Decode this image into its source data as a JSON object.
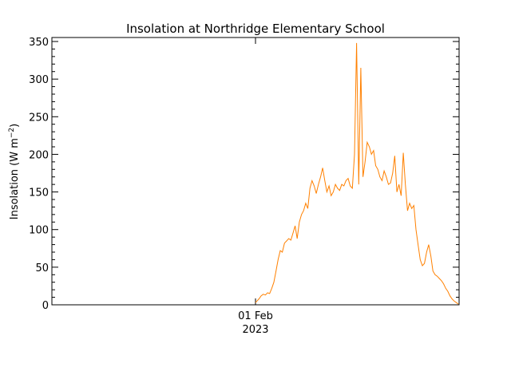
{
  "chart_data": {
    "type": "line",
    "title": "Insolation at Northridge Elementary School",
    "ylabel_main": "Insolation (W m",
    "ylabel_sup": "−2",
    "ylabel_end": ")",
    "ylim": [
      0,
      350
    ],
    "yticks": [
      0,
      50,
      100,
      150,
      200,
      250,
      300,
      350
    ],
    "xlim": [
      "2023-01-31 00:00",
      "2023-02-01 24:00"
    ],
    "xticks": [
      {
        "x": "2023-02-01 00:00",
        "label": "01 Feb",
        "sublabel": "2023"
      }
    ],
    "grid": false,
    "series": [
      {
        "color": "#ff8000",
        "x": [
          "2023-02-01 00:00",
          "2023-02-01 00:10",
          "2023-02-01 00:25",
          "2023-02-01 00:40",
          "2023-02-01 00:55",
          "2023-02-01 01:10",
          "2023-02-01 01:25",
          "2023-02-01 01:40",
          "2023-02-01 01:55",
          "2023-02-01 02:10",
          "2023-02-01 02:25",
          "2023-02-01 02:40",
          "2023-02-01 02:55",
          "2023-02-01 03:10",
          "2023-02-01 03:25",
          "2023-02-01 03:40",
          "2023-02-01 03:55",
          "2023-02-01 04:10",
          "2023-02-01 04:25",
          "2023-02-01 04:40",
          "2023-02-01 04:55",
          "2023-02-01 05:10",
          "2023-02-01 05:25",
          "2023-02-01 05:40",
          "2023-02-01 05:55",
          "2023-02-01 06:10",
          "2023-02-01 06:25",
          "2023-02-01 06:40",
          "2023-02-01 06:55",
          "2023-02-01 07:10",
          "2023-02-01 07:25",
          "2023-02-01 07:40",
          "2023-02-01 07:55",
          "2023-02-01 08:10",
          "2023-02-01 08:25",
          "2023-02-01 08:40",
          "2023-02-01 08:55",
          "2023-02-01 09:10",
          "2023-02-01 09:25",
          "2023-02-01 09:40",
          "2023-02-01 09:55",
          "2023-02-01 10:10",
          "2023-02-01 10:25",
          "2023-02-01 10:40",
          "2023-02-01 10:55",
          "2023-02-01 11:10",
          "2023-02-01 11:25",
          "2023-02-01 11:40",
          "2023-02-01 11:55",
          "2023-02-01 12:10",
          "2023-02-01 12:25",
          "2023-02-01 12:40",
          "2023-02-01 12:55",
          "2023-02-01 13:10",
          "2023-02-01 13:25",
          "2023-02-01 13:40",
          "2023-02-01 13:55",
          "2023-02-01 14:10",
          "2023-02-01 14:25",
          "2023-02-01 14:40",
          "2023-02-01 14:55",
          "2023-02-01 15:10",
          "2023-02-01 15:25",
          "2023-02-01 15:40",
          "2023-02-01 15:55",
          "2023-02-01 16:10",
          "2023-02-01 16:25",
          "2023-02-01 16:40",
          "2023-02-01 16:55",
          "2023-02-01 17:10",
          "2023-02-01 17:25",
          "2023-02-01 17:40",
          "2023-02-01 17:55",
          "2023-02-01 18:10",
          "2023-02-01 18:25",
          "2023-02-01 18:40",
          "2023-02-01 18:55",
          "2023-02-01 19:10",
          "2023-02-01 19:25",
          "2023-02-01 19:40",
          "2023-02-01 19:55",
          "2023-02-01 20:10",
          "2023-02-01 20:25",
          "2023-02-01 20:40",
          "2023-02-01 20:55",
          "2023-02-01 21:10",
          "2023-02-01 21:25",
          "2023-02-01 21:40",
          "2023-02-01 21:55",
          "2023-02-01 22:10",
          "2023-02-01 22:25",
          "2023-02-01 22:40",
          "2023-02-01 22:55",
          "2023-02-01 23:10",
          "2023-02-01 23:25",
          "2023-02-01 23:40",
          "2023-02-01 23:55"
        ],
        "y": [
          3,
          5,
          8,
          12,
          14,
          13,
          16,
          15,
          22,
          30,
          45,
          60,
          72,
          70,
          82,
          85,
          88,
          86,
          95,
          105,
          88,
          110,
          120,
          125,
          135,
          128,
          155,
          165,
          158,
          148,
          160,
          170,
          182,
          165,
          150,
          158,
          145,
          150,
          160,
          155,
          152,
          160,
          158,
          165,
          168,
          158,
          155,
          200,
          348,
          160,
          315,
          170,
          190,
          216,
          210,
          200,
          205,
          185,
          180,
          170,
          165,
          178,
          170,
          160,
          162,
          175,
          198,
          150,
          160,
          145,
          202,
          160,
          125,
          135,
          128,
          132,
          100,
          80,
          60,
          52,
          55,
          70,
          80,
          65,
          45,
          40,
          38,
          35,
          32,
          28,
          22,
          18,
          12,
          8,
          5,
          3,
          1
        ]
      }
    ]
  }
}
